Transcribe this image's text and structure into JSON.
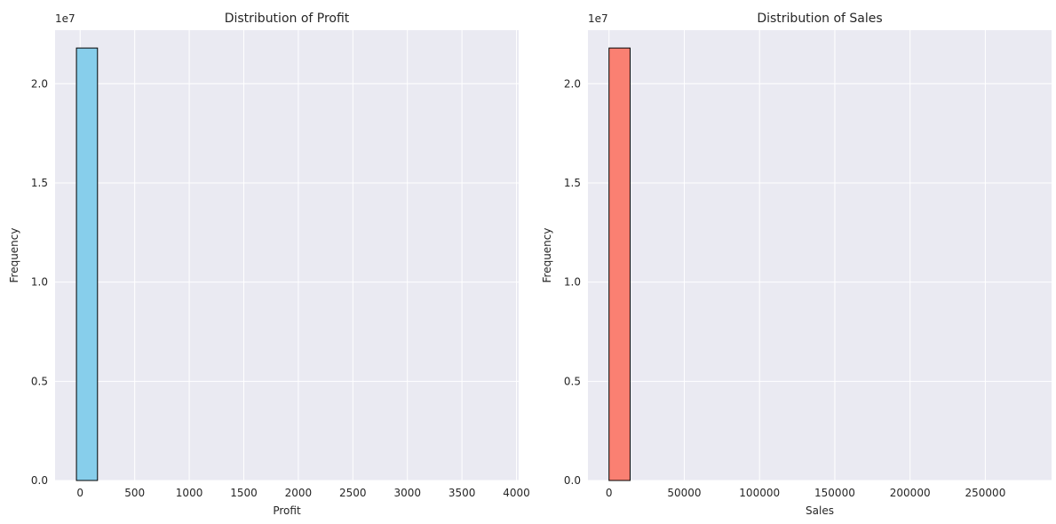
{
  "chart_data": [
    {
      "type": "bar",
      "title": "Distribution of Profit",
      "xlabel": "Profit",
      "ylabel": "Frequency",
      "y_offset_text": "1e7",
      "xlim": [
        -230,
        4020
      ],
      "ylim": [
        0,
        22700000.0
      ],
      "xticks": [
        0,
        500,
        1000,
        1500,
        2000,
        2500,
        3000,
        3500,
        4000
      ],
      "xtick_labels": [
        "0",
        "500",
        "1000",
        "1500",
        "2000",
        "2500",
        "3000",
        "3500",
        "4000"
      ],
      "yticks": [
        0,
        5000000,
        10000000,
        15000000,
        20000000
      ],
      "ytick_labels": [
        "0.0",
        "0.5",
        "1.0",
        "1.5",
        "2.0"
      ],
      "bins": {
        "start": -34,
        "width": 193,
        "count": 20
      },
      "values": [
        21800000,
        0,
        0,
        0,
        0,
        0,
        0,
        0,
        0,
        0,
        0,
        0,
        0,
        0,
        0,
        0,
        0,
        0,
        0,
        0
      ],
      "bar_color": "#87CEEB",
      "edge_color": "#000000",
      "grid": true
    },
    {
      "type": "bar",
      "title": "Distribution of Sales",
      "xlabel": "Sales",
      "ylabel": "Frequency",
      "y_offset_text": "1e7",
      "xlim": [
        -14000,
        294000
      ],
      "ylim": [
        0,
        22700000.0
      ],
      "xticks": [
        0,
        50000,
        100000,
        150000,
        200000,
        250000
      ],
      "xtick_labels": [
        "0",
        "50000",
        "100000",
        "150000",
        "200000",
        "250000"
      ],
      "yticks": [
        0,
        5000000,
        10000000,
        15000000,
        20000000
      ],
      "ytick_labels": [
        "0.0",
        "0.5",
        "1.0",
        "1.5",
        "2.0"
      ],
      "bins": {
        "start": 0,
        "width": 14000,
        "count": 20
      },
      "values": [
        21800000,
        0,
        0,
        0,
        0,
        0,
        0,
        0,
        0,
        0,
        0,
        0,
        0,
        0,
        0,
        0,
        0,
        0,
        0,
        0
      ],
      "bar_color": "#FA8072",
      "edge_color": "#000000",
      "grid": true
    }
  ]
}
